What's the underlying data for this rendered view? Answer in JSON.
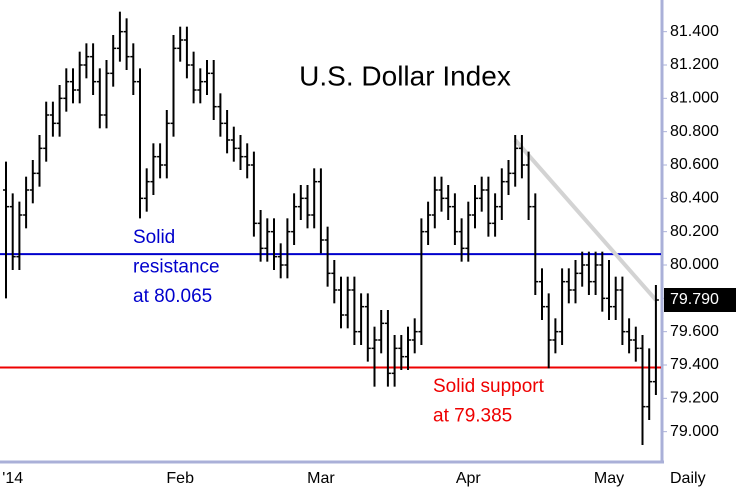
{
  "chart_data": {
    "type": "ohlc",
    "title": "U.S. Dollar Index",
    "period": "Daily",
    "categories": [
      null,
      "'14",
      null,
      null,
      null,
      null,
      null,
      null,
      null,
      null,
      null,
      null,
      null,
      null,
      null,
      null,
      null,
      null,
      null,
      null,
      null,
      null,
      null,
      null,
      null,
      null,
      "Feb",
      null,
      null,
      null,
      null,
      null,
      null,
      null,
      null,
      null,
      null,
      null,
      null,
      null,
      null,
      null,
      null,
      null,
      null,
      null,
      null,
      "Mar",
      null,
      null,
      null,
      null,
      null,
      null,
      null,
      null,
      null,
      null,
      null,
      null,
      null,
      null,
      null,
      null,
      null,
      null,
      null,
      null,
      null,
      "Apr",
      null,
      null,
      null,
      null,
      null,
      null,
      null,
      null,
      null,
      null,
      null,
      null,
      null,
      null,
      null,
      null,
      null,
      null,
      null,
      null,
      "May",
      null,
      null,
      null,
      null,
      null,
      null,
      null
    ],
    "series": [
      {
        "color": "#000000",
        "values": [
          [
            80.45,
            80.62,
            79.8,
            80.35
          ],
          [
            80.35,
            80.43,
            79.97,
            80.05
          ],
          [
            80.05,
            80.38,
            79.97,
            80.3
          ],
          [
            80.3,
            80.53,
            80.22,
            80.45
          ],
          [
            80.45,
            80.63,
            80.37,
            80.55
          ],
          [
            80.55,
            80.78,
            80.47,
            80.7
          ],
          [
            80.7,
            80.98,
            80.62,
            80.9
          ],
          [
            80.9,
            80.98,
            80.77,
            80.85
          ],
          [
            80.85,
            81.08,
            80.77,
            81.0
          ],
          [
            81.0,
            81.18,
            80.92,
            81.1
          ],
          [
            81.1,
            81.18,
            80.97,
            81.05
          ],
          [
            81.05,
            81.28,
            80.97,
            81.2
          ],
          [
            81.2,
            81.33,
            81.12,
            81.25
          ],
          [
            81.25,
            81.33,
            81.02,
            81.1
          ],
          [
            81.1,
            81.18,
            80.82,
            80.9
          ],
          [
            80.9,
            81.23,
            80.82,
            81.15
          ],
          [
            81.15,
            81.38,
            81.07,
            81.3
          ],
          [
            81.3,
            81.52,
            81.22,
            81.4
          ],
          [
            81.4,
            81.48,
            81.17,
            81.25
          ],
          [
            81.25,
            81.33,
            81.02,
            81.1
          ],
          [
            81.1,
            81.18,
            80.28,
            80.4
          ],
          [
            80.4,
            80.58,
            80.32,
            80.5
          ],
          [
            80.5,
            80.73,
            80.42,
            80.65
          ],
          [
            80.65,
            80.73,
            80.52,
            80.6
          ],
          [
            80.6,
            80.93,
            80.52,
            80.85
          ],
          [
            80.85,
            81.38,
            80.77,
            81.3
          ],
          [
            81.3,
            81.43,
            81.22,
            81.35
          ],
          [
            81.35,
            81.43,
            81.12,
            81.2
          ],
          [
            81.2,
            81.28,
            80.97,
            81.05
          ],
          [
            81.05,
            81.18,
            80.97,
            81.1
          ],
          [
            81.1,
            81.23,
            81.02,
            81.15
          ],
          [
            81.15,
            81.23,
            80.87,
            80.95
          ],
          [
            80.95,
            81.03,
            80.77,
            80.85
          ],
          [
            80.85,
            80.93,
            80.67,
            80.75
          ],
          [
            80.75,
            80.83,
            80.62,
            80.7
          ],
          [
            80.7,
            80.78,
            80.57,
            80.65
          ],
          [
            80.65,
            80.73,
            80.52,
            80.6
          ],
          [
            80.6,
            80.68,
            80.17,
            80.25
          ],
          [
            80.25,
            80.33,
            80.02,
            80.1
          ],
          [
            80.1,
            80.28,
            80.02,
            80.2
          ],
          [
            80.2,
            80.28,
            79.97,
            80.05
          ],
          [
            80.05,
            80.13,
            79.92,
            80.0
          ],
          [
            80.0,
            80.28,
            79.92,
            80.2
          ],
          [
            80.2,
            80.43,
            80.12,
            80.35
          ],
          [
            80.35,
            80.48,
            80.27,
            80.4
          ],
          [
            80.4,
            80.48,
            80.22,
            80.3
          ],
          [
            80.3,
            80.58,
            80.22,
            80.5
          ],
          [
            80.5,
            80.58,
            80.07,
            80.15
          ],
          [
            80.15,
            80.23,
            79.87,
            79.95
          ],
          [
            79.95,
            80.03,
            79.77,
            79.85
          ],
          [
            79.85,
            79.93,
            79.62,
            79.7
          ],
          [
            79.7,
            79.93,
            79.62,
            79.85
          ],
          [
            79.85,
            79.93,
            79.52,
            79.6
          ],
          [
            79.6,
            79.83,
            79.52,
            79.75
          ],
          [
            79.75,
            79.83,
            79.42,
            79.5
          ],
          [
            79.5,
            79.63,
            79.27,
            79.55
          ],
          [
            79.55,
            79.73,
            79.47,
            79.65
          ],
          [
            79.65,
            79.73,
            79.27,
            79.35
          ],
          [
            79.35,
            79.58,
            79.27,
            79.5
          ],
          [
            79.5,
            79.58,
            79.37,
            79.45
          ],
          [
            79.45,
            79.63,
            79.37,
            79.55
          ],
          [
            79.55,
            79.68,
            79.47,
            79.6
          ],
          [
            79.6,
            80.28,
            79.52,
            80.2
          ],
          [
            80.2,
            80.38,
            80.12,
            80.3
          ],
          [
            80.3,
            80.53,
            80.22,
            80.45
          ],
          [
            80.45,
            80.53,
            80.32,
            80.4
          ],
          [
            80.4,
            80.48,
            80.27,
            80.35
          ],
          [
            80.35,
            80.43,
            80.12,
            80.2
          ],
          [
            80.2,
            80.28,
            80.02,
            80.1
          ],
          [
            80.1,
            80.38,
            80.02,
            80.3
          ],
          [
            80.3,
            80.48,
            80.22,
            80.4
          ],
          [
            80.4,
            80.53,
            80.32,
            80.45
          ],
          [
            80.45,
            80.53,
            80.17,
            80.25
          ],
          [
            80.25,
            80.43,
            80.17,
            80.35
          ],
          [
            80.35,
            80.58,
            80.27,
            80.5
          ],
          [
            80.5,
            80.63,
            80.42,
            80.55
          ],
          [
            80.55,
            80.78,
            80.47,
            80.7
          ],
          [
            80.7,
            80.78,
            80.52,
            80.6
          ],
          [
            80.6,
            80.68,
            80.27,
            80.35
          ],
          [
            80.35,
            80.43,
            79.82,
            79.9
          ],
          [
            79.9,
            79.98,
            79.67,
            79.75
          ],
          [
            79.75,
            79.83,
            79.38,
            79.55
          ],
          [
            79.55,
            79.68,
            79.47,
            79.6
          ],
          [
            79.6,
            79.98,
            79.52,
            79.9
          ],
          [
            79.9,
            79.98,
            79.77,
            79.85
          ],
          [
            79.85,
            80.03,
            79.77,
            79.95
          ],
          [
            79.95,
            80.08,
            79.87,
            80.0
          ],
          [
            80.0,
            80.08,
            79.82,
            79.9
          ],
          [
            79.9,
            80.08,
            79.82,
            80.0
          ],
          [
            80.0,
            80.08,
            79.72,
            79.8
          ],
          [
            79.8,
            80.03,
            79.67,
            79.75
          ],
          [
            79.75,
            79.93,
            79.67,
            79.85
          ],
          [
            79.85,
            79.93,
            79.52,
            79.6
          ],
          [
            79.6,
            79.68,
            79.47,
            79.55
          ],
          [
            79.55,
            79.63,
            79.42,
            79.5
          ],
          [
            79.5,
            79.58,
            78.92,
            79.15
          ],
          [
            79.15,
            79.5,
            79.07,
            79.3
          ],
          [
            79.3,
            79.88,
            79.22,
            79.79
          ]
        ]
      }
    ],
    "ylim": [
      78.83,
      81.59
    ],
    "yticks": [
      {
        "value": 79.0,
        "label": "79.000"
      },
      {
        "value": 79.2,
        "label": "79.200"
      },
      {
        "value": 79.4,
        "label": "79.400"
      },
      {
        "value": 79.6,
        "label": "79.600"
      },
      {
        "value": 79.8,
        "label": "79.800"
      },
      {
        "value": 80.0,
        "label": "80.000"
      },
      {
        "value": 80.2,
        "label": "80.200"
      },
      {
        "value": 80.4,
        "label": "80.400"
      },
      {
        "value": 80.6,
        "label": "80.600"
      },
      {
        "value": 80.8,
        "label": "80.800"
      },
      {
        "value": 81.0,
        "label": "81.000"
      },
      {
        "value": 81.2,
        "label": "81.200"
      },
      {
        "value": 81.4,
        "label": "81.400"
      }
    ],
    "last_price": {
      "value": 79.79,
      "label": "79.790"
    },
    "hlines": [
      {
        "value": 80.065,
        "color": "#0000cc",
        "label": [
          "Solid",
          "resistance",
          "at 80.065"
        ]
      },
      {
        "value": 79.385,
        "color": "#ee0000",
        "label": [
          "Solid support",
          "at 79.385"
        ]
      }
    ],
    "trendline": {
      "color": "#d3d3d3",
      "x": [
        76,
        97
      ],
      "y": [
        80.75,
        79.79
      ]
    }
  }
}
